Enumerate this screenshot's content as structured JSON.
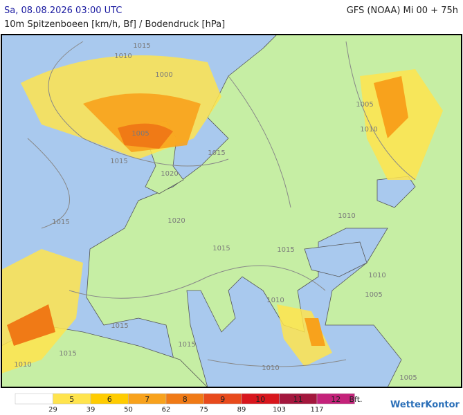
{
  "header": {
    "left": "Sa, 08.08.2026 03:00 UTC",
    "right": "GFS (NOAA) Mi 00 + 75h",
    "subtitle": "10m Spitzenboeen [km/h, Bf] / Bodendruck [hPa]"
  },
  "map": {
    "isobar_labels": [
      "1015",
      "1010",
      "1000",
      "1005",
      "1015",
      "1020",
      "1015",
      "1015",
      "1020",
      "1015",
      "1015",
      "1010",
      "1005",
      "1010",
      "1010",
      "1005",
      "1010",
      "1015",
      "1015",
      "1015",
      "1010",
      "1010",
      "1005"
    ]
  },
  "legend": {
    "classes": [
      {
        "label": null,
        "color": "#ffffff"
      },
      {
        "label": "5",
        "color": "#ffe44d"
      },
      {
        "label": "6",
        "color": "#ffcc00"
      },
      {
        "label": "7",
        "color": "#f8a21c"
      },
      {
        "label": "8",
        "color": "#f07a16"
      },
      {
        "label": "9",
        "color": "#e84a1c"
      },
      {
        "label": "10",
        "color": "#d8161d"
      },
      {
        "label": "11",
        "color": "#a3173d"
      },
      {
        "label": "12",
        "color": "#c4227a"
      }
    ],
    "kmh": [
      "29",
      "39",
      "50",
      "62",
      "75",
      "89",
      "103",
      "117"
    ],
    "unit": "Bft."
  },
  "logo": "WetterKontor"
}
